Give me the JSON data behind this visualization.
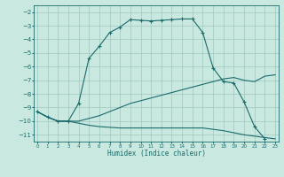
{
  "xlabel": "Humidex (Indice chaleur)",
  "x_ticks": [
    0,
    1,
    2,
    3,
    4,
    5,
    6,
    7,
    8,
    9,
    10,
    11,
    12,
    13,
    14,
    15,
    16,
    17,
    18,
    19,
    20,
    21,
    22,
    23
  ],
  "y_ticks": [
    -2,
    -3,
    -4,
    -5,
    -6,
    -7,
    -8,
    -9,
    -10,
    -11
  ],
  "xlim": [
    -0.3,
    23.3
  ],
  "ylim": [
    -11.5,
    -1.5
  ],
  "bg_color": "#c8e8e0",
  "line_color": "#1a6b6b",
  "grid_color": "#a0c8c0",
  "line1_x": [
    0,
    1,
    2,
    3,
    4,
    5,
    6,
    7,
    8,
    9,
    10,
    11,
    12,
    13,
    14,
    15,
    16,
    17,
    18,
    19,
    20,
    21,
    22,
    23
  ],
  "line1_y": [
    -9.3,
    -9.7,
    -10.0,
    -10.0,
    -10.0,
    -9.8,
    -9.6,
    -9.3,
    -9.0,
    -8.7,
    -8.5,
    -8.3,
    -8.1,
    -7.9,
    -7.7,
    -7.5,
    -7.3,
    -7.1,
    -6.9,
    -6.8,
    -7.0,
    -7.1,
    -6.7,
    -6.6
  ],
  "line2_x": [
    0,
    1,
    2,
    3,
    4,
    5,
    6,
    7,
    8,
    9,
    10,
    11,
    12,
    13,
    14,
    15,
    16,
    17,
    18,
    19,
    20,
    21,
    22,
    23
  ],
  "line2_y": [
    -9.3,
    -9.7,
    -10.0,
    -10.0,
    -10.15,
    -10.3,
    -10.4,
    -10.45,
    -10.5,
    -10.5,
    -10.5,
    -10.5,
    -10.5,
    -10.5,
    -10.5,
    -10.5,
    -10.5,
    -10.6,
    -10.7,
    -10.85,
    -11.0,
    -11.1,
    -11.2,
    -11.3
  ],
  "line3_x": [
    0,
    1,
    2,
    3,
    4,
    5,
    6,
    7,
    8,
    9,
    10,
    11,
    12,
    13,
    14,
    15,
    16,
    17,
    18,
    19,
    20,
    21,
    22
  ],
  "line3_y": [
    -9.3,
    -9.7,
    -10.0,
    -10.0,
    -8.7,
    -5.4,
    -4.5,
    -3.5,
    -3.1,
    -2.55,
    -2.6,
    -2.65,
    -2.6,
    -2.55,
    -2.5,
    -2.5,
    -3.5,
    -6.1,
    -7.1,
    -7.2,
    -8.6,
    -10.4,
    -11.3
  ]
}
